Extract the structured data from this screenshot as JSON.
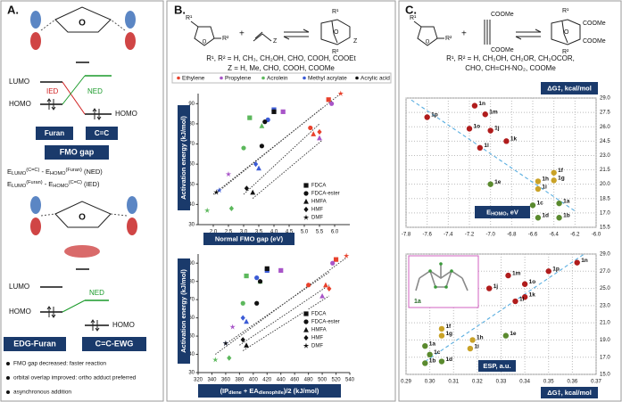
{
  "panel_a": {
    "label": "A.",
    "diagram1": {
      "lumo_left": "LUMO",
      "homo_left": "HOMO",
      "ied": "IED",
      "ned": "NED",
      "homo_right": "HOMO",
      "furan": "Furan",
      "cc": "C=C",
      "fmo_gap": "FMO gap",
      "ned_formula": [
        {
          "text": "E"
        },
        {
          "text": "LUMO",
          "pos": "sub"
        },
        {
          "text": "(C=C)",
          "pos": "sup"
        },
        {
          "text": " - E"
        },
        {
          "text": "HOMO",
          "pos": "sub"
        },
        {
          "text": "(Furan)",
          "pos": "sup"
        },
        {
          "text": " (NED)"
        }
      ],
      "ied_formula": [
        {
          "text": "E"
        },
        {
          "text": "LUMO",
          "pos": "sub"
        },
        {
          "text": "(Furan)",
          "pos": "sup"
        },
        {
          "text": " - E"
        },
        {
          "text": "HOMO",
          "pos": "sub"
        },
        {
          "text": "(C=C)",
          "pos": "sup"
        },
        {
          "text": " (IED)"
        }
      ]
    },
    "diagram2": {
      "lumo_left": "LUMO",
      "homo_left": "HOMO",
      "ned": "NED",
      "homo_right": "HOMO",
      "edg_furan": "EDG-Furan",
      "cc_ewg": "C=C-EWG"
    },
    "bullets": [
      "FMO gap decreased: faster reaction",
      "orbital overlap improved: ortho adduct preferred",
      "asynchronous addition"
    ]
  },
  "panel_b": {
    "label": "B.",
    "scheme": {
      "r1": "R¹",
      "r2": "R²",
      "plus": "+",
      "z": "Z",
      "r1p": "R¹",
      "r2p": "R²",
      "zp": "Z"
    },
    "substituents": "R¹, R² = H, CH₃, CH₂OH, CHO, COOH, COOEt",
    "z_groups": "Z = H, Me, CHO, COOH, COOMe"
  },
  "panel_c": {
    "label": "C.",
    "scheme": {
      "r1": "R¹",
      "r2": "R²",
      "plus": "+",
      "coome": [
        "COOMe",
        "COOMe"
      ],
      "r1p": "R¹",
      "r2p": "R²",
      "coome_p": [
        "COOMe",
        "COOMe"
      ]
    },
    "substituents": [
      "R¹, R² = H, CH₂OH, CH₂OR, CH₂OCOR,",
      "CHO, CH=CH-NO₂, COOMe"
    ],
    "inset_label": "1a"
  },
  "chart_data": [
    {
      "type": "scatter",
      "xlabel": [
        {
          "text": "Normal FMO gap (eV)"
        }
      ],
      "ylabel": "Activation energy (kJ/mol)",
      "xlim": [
        1.5,
        6.5
      ],
      "xticks": [
        {
          "value": 2,
          "label": "2.0"
        },
        2.5,
        {
          "value": 3,
          "label": "3.0"
        },
        3.5,
        {
          "value": 4,
          "label": "4.0"
        },
        4.5,
        {
          "value": 5,
          "label": "5.0"
        },
        5.5,
        {
          "value": 6,
          "label": "6.0"
        }
      ],
      "ylim": [
        30,
        95
      ],
      "yticks": [
        30,
        40,
        50,
        60,
        70,
        80,
        90
      ],
      "grid": false,
      "series": [
        {
          "name": "Ethylene",
          "color": "#e8412c",
          "x": [
            5.2,
            5.3,
            5.5,
            5.8,
            6.2
          ],
          "values": [
            78,
            75,
            76,
            92,
            95
          ],
          "shapes": [
            "circle",
            "triangle",
            "diamond",
            "square",
            "star"
          ]
        },
        {
          "name": "Propylene",
          "color": "#a855c8",
          "x": [
            2.5,
            4.3,
            5.5,
            5.9
          ],
          "values": [
            55,
            86,
            73,
            90
          ],
          "shapes": [
            "star",
            "square",
            "triangle",
            "circle"
          ]
        },
        {
          "name": "Acrolein",
          "color": "#5cb85c",
          "x": [
            1.8,
            2.6,
            3.0,
            3.2,
            3.6
          ],
          "values": [
            37,
            38,
            68,
            83,
            79
          ],
          "shapes": [
            "star",
            "diamond",
            "circle",
            "square",
            "triangle"
          ]
        },
        {
          "name": "Methyl acrylate",
          "color": "#3b5bd6",
          "x": [
            2.2,
            3.4,
            3.5,
            3.8,
            4.0
          ],
          "values": [
            47,
            60,
            58,
            82,
            87
          ],
          "shapes": [
            "star",
            "diamond",
            "triangle",
            "circle",
            "square"
          ]
        },
        {
          "name": "Acrylic acid",
          "color": "#111111",
          "x": [
            2.1,
            3.1,
            3.3,
            3.6,
            3.7,
            4.0
          ],
          "values": [
            46,
            48,
            46,
            69,
            81,
            86
          ],
          "shapes": [
            "star",
            "diamond",
            "triangle",
            "circle",
            "circle",
            "square"
          ]
        }
      ],
      "trendlines": [
        {
          "x": [
            2.0,
            6.2
          ],
          "y": [
            45,
            95
          ]
        },
        {
          "x": [
            2.3,
            5.6
          ],
          "y": [
            48,
            88
          ]
        },
        {
          "x": [
            3.0,
            5.5
          ],
          "y": [
            45,
            80
          ]
        },
        {
          "x": [
            3.3,
            5.6
          ],
          "y": [
            43,
            72
          ]
        }
      ],
      "marker_legend": [
        {
          "name": "FDCA",
          "shape": "square"
        },
        {
          "name": "FDCA-ester",
          "shape": "circle"
        },
        {
          "name": "HMFA",
          "shape": "triangle"
        },
        {
          "name": "HMF",
          "shape": "diamond"
        },
        {
          "name": "DMF",
          "shape": "star"
        }
      ]
    },
    {
      "type": "scatter",
      "xlabel": [
        {
          "text": "(IP"
        },
        {
          "text": "diene",
          "pos": "sub"
        },
        {
          "text": " + EA"
        },
        {
          "text": "dienophile",
          "pos": "sub"
        },
        {
          "text": ")/2 (kJ/mol)"
        }
      ],
      "ylabel": "Activation energy (kJ/mol)",
      "xlim": [
        320,
        540
      ],
      "xticks": [
        320,
        340,
        360,
        380,
        400,
        420,
        440,
        460,
        480,
        500,
        520,
        540
      ],
      "ylim": [
        30,
        95
      ],
      "yticks": [
        30,
        40,
        50,
        60,
        70,
        80,
        90
      ],
      "grid": false,
      "series": [
        {
          "name": "Ethylene",
          "color": "#e8412c",
          "x": [
            480,
            505,
            510,
            520,
            535
          ],
          "values": [
            78,
            78,
            76,
            92,
            94
          ],
          "shapes": [
            "circle",
            "triangle",
            "diamond",
            "square",
            "star"
          ]
        },
        {
          "name": "Propylene",
          "color": "#a855c8",
          "x": [
            370,
            440,
            500,
            515
          ],
          "values": [
            55,
            86,
            72,
            90
          ],
          "shapes": [
            "star",
            "square",
            "triangle",
            "circle"
          ]
        },
        {
          "name": "Acrolein",
          "color": "#5cb85c",
          "x": [
            345,
            365,
            385,
            390,
            410
          ],
          "values": [
            37,
            38,
            68,
            83,
            80
          ],
          "shapes": [
            "star",
            "diamond",
            "circle",
            "square",
            "triangle"
          ]
        },
        {
          "name": "Methyl acrylate",
          "color": "#3b5bd6",
          "x": [
            360,
            385,
            390,
            405,
            420
          ],
          "values": [
            46,
            60,
            58,
            82,
            86
          ],
          "shapes": [
            "star",
            "diamond",
            "triangle",
            "circle",
            "square"
          ]
        },
        {
          "name": "Acrylic acid",
          "color": "#111111",
          "x": [
            360,
            385,
            390,
            405,
            410,
            420
          ],
          "values": [
            46,
            48,
            45,
            68,
            80,
            87
          ],
          "shapes": [
            "star",
            "diamond",
            "triangle",
            "circle",
            "circle",
            "square"
          ]
        }
      ],
      "trendlines": [
        {
          "x": [
            345,
            535
          ],
          "y": [
            40,
            93
          ]
        },
        {
          "x": [
            365,
            510
          ],
          "y": [
            47,
            85
          ]
        },
        {
          "x": [
            380,
            510
          ],
          "y": [
            45,
            78
          ]
        },
        {
          "x": [
            385,
            510
          ],
          "y": [
            42,
            72
          ]
        }
      ],
      "marker_legend": [
        {
          "name": "FDCA",
          "shape": "square"
        },
        {
          "name": "FDCA-ester",
          "shape": "circle"
        },
        {
          "name": "HMFA",
          "shape": "triangle"
        },
        {
          "name": "HMF",
          "shape": "diamond"
        },
        {
          "name": "DMF",
          "shape": "star"
        }
      ]
    },
    {
      "type": "scatter",
      "xlabel": [
        {
          "text": "E"
        },
        {
          "text": "HOMO",
          "pos": "sub"
        },
        {
          "text": ", eV"
        }
      ],
      "ylabel": "ΔG‡, kcal/mol",
      "xlim": [
        -7.8,
        -6.0
      ],
      "xticks": [
        -7.8,
        -7.6,
        -7.4,
        -7.2,
        {
          "value": -7,
          "label": "-7.0"
        },
        -6.8,
        -6.6,
        -6.4,
        -6.2,
        {
          "value": -6,
          "label": "-6.0"
        }
      ],
      "ylim": [
        15.5,
        29
      ],
      "yticks": [
        15.5,
        {
          "value": 17,
          "label": "17.0"
        },
        18.5,
        {
          "value": 20,
          "label": "20.0"
        },
        21.5,
        {
          "value": 23,
          "label": "23.0"
        },
        24.5,
        {
          "value": 26,
          "label": "26.0"
        },
        27.5,
        {
          "value": 29,
          "label": "29.0"
        }
      ],
      "grid": true,
      "y_axis_side": "right",
      "point_labels": [
        "1p",
        "1n",
        "1m",
        "1o",
        "1j",
        "1k",
        "1l",
        "1e",
        "1f",
        "1g",
        "1h",
        "1i",
        "1a",
        "1c",
        "1d",
        "1b"
      ],
      "x": [
        -7.6,
        -7.15,
        -7.05,
        -7.2,
        -7.0,
        -6.85,
        -7.1,
        -7.0,
        -6.4,
        -6.4,
        -6.55,
        -6.55,
        -6.35,
        -6.6,
        -6.55,
        -6.35
      ],
      "values": [
        27.0,
        28.2,
        27.3,
        25.8,
        25.6,
        24.5,
        23.8,
        20.0,
        21.2,
        20.4,
        20.3,
        19.5,
        18.0,
        17.8,
        16.5,
        16.5
      ],
      "point_colors": [
        "#b01c1c",
        "#b01c1c",
        "#b01c1c",
        "#b01c1c",
        "#b01c1c",
        "#b01c1c",
        "#b01c1c",
        "#5a8a2e",
        "#c9a227",
        "#c9a227",
        "#c9a227",
        "#c9a227",
        "#5a8a2e",
        "#5a8a2e",
        "#5a8a2e",
        "#5a8a2e"
      ],
      "trendline": {
        "x": [
          -7.75,
          -6.2
        ],
        "y": [
          28.8,
          17.2
        ]
      }
    },
    {
      "type": "scatter",
      "xlabel": [
        {
          "text": "ESP, a.u."
        }
      ],
      "ylabel": "ΔG‡, kcal/mol",
      "xlim": [
        0.29,
        0.37
      ],
      "xticks": [
        0.29,
        {
          "value": 0.3,
          "label": "0.30"
        },
        0.31,
        0.32,
        0.33,
        0.34,
        0.35,
        0.36,
        0.37
      ],
      "ylim": [
        15,
        29
      ],
      "yticks": [
        {
          "value": 15,
          "label": "15.0"
        },
        {
          "value": 17,
          "label": "17.0"
        },
        {
          "value": 19,
          "label": "19.0"
        },
        {
          "value": 21,
          "label": "21.0"
        },
        {
          "value": 23,
          "label": "23.0"
        },
        {
          "value": 25,
          "label": "25.0"
        },
        {
          "value": 27,
          "label": "27.0"
        },
        {
          "value": 29,
          "label": "29.0"
        }
      ],
      "grid": true,
      "y_axis_side": "right",
      "point_labels": [
        "1n",
        "1p",
        "1m",
        "1o",
        "1j",
        "1k",
        "1l",
        "1f",
        "1g",
        "1h",
        "1e",
        "1i",
        "1a",
        "1c",
        "1b",
        "1d"
      ],
      "x": [
        0.362,
        0.35,
        0.333,
        0.34,
        0.325,
        0.34,
        0.336,
        0.305,
        0.305,
        0.318,
        0.332,
        0.317,
        0.298,
        0.3,
        0.298,
        0.305
      ],
      "values": [
        28.0,
        27.0,
        26.5,
        25.5,
        25.0,
        24.0,
        23.5,
        20.3,
        19.5,
        19.0,
        19.5,
        18.0,
        18.3,
        17.3,
        16.3,
        16.5
      ],
      "point_colors": [
        "#b01c1c",
        "#b01c1c",
        "#b01c1c",
        "#b01c1c",
        "#b01c1c",
        "#b01c1c",
        "#b01c1c",
        "#c9a227",
        "#c9a227",
        "#c9a227",
        "#5a8a2e",
        "#c9a227",
        "#5a8a2e",
        "#5a8a2e",
        "#5a8a2e",
        "#5a8a2e"
      ],
      "trendline": {
        "x": [
          0.298,
          0.365
        ],
        "y": [
          16.5,
          29
        ]
      }
    }
  ]
}
